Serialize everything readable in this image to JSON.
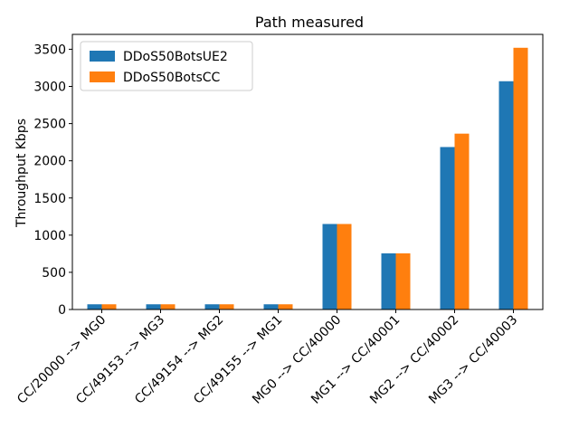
{
  "chart_data": {
    "type": "bar",
    "title": "Path measured",
    "xlabel": "",
    "ylabel": "Throughput Kbps",
    "ylim": [
      0,
      3700
    ],
    "yticks": [
      0,
      500,
      1000,
      1500,
      2000,
      2500,
      3000,
      3500
    ],
    "categories": [
      "CC/20000 --> MG0",
      "CC/49153 --> MG3",
      "CC/49154 --> MG2",
      "CC/49155 --> MG1",
      "MG0 --> CC/40000",
      "MG1 --> CC/40001",
      "MG2 --> CC/40002",
      "MG3 --> CC/40003"
    ],
    "series": [
      {
        "name": "DDoS50BotsUE2",
        "color": "#1f77b4",
        "values": [
          70,
          70,
          70,
          70,
          1150,
          755,
          2185,
          3070
        ]
      },
      {
        "name": "DDoS50BotsCC",
        "color": "#ff7f0e",
        "values": [
          70,
          70,
          70,
          70,
          1150,
          755,
          2365,
          3520
        ]
      }
    ],
    "grid": false,
    "legend_position": "top-left"
  }
}
